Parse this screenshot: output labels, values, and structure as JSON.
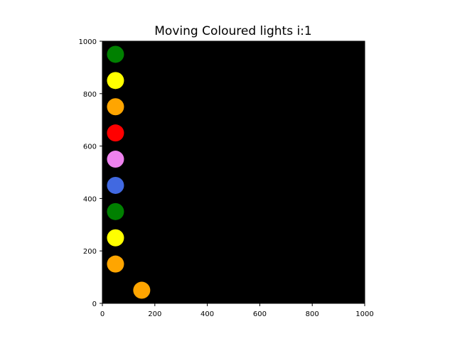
{
  "chart_data": {
    "type": "scatter",
    "title": "Moving Coloured lights i:1",
    "xlabel": "",
    "ylabel": "",
    "xlim": [
      0,
      1000
    ],
    "ylim": [
      0,
      1000
    ],
    "x_ticks": [
      0,
      200,
      400,
      600,
      800,
      1000
    ],
    "y_ticks": [
      0,
      200,
      400,
      600,
      800,
      1000
    ],
    "grid": false,
    "legend": "none",
    "plot_background": "#000000",
    "points": [
      {
        "x": 50,
        "y": 950,
        "color": "#008000"
      },
      {
        "x": 50,
        "y": 850,
        "color": "#ffff00"
      },
      {
        "x": 50,
        "y": 750,
        "color": "#ffa500"
      },
      {
        "x": 50,
        "y": 650,
        "color": "#ff0000"
      },
      {
        "x": 50,
        "y": 550,
        "color": "#ee82ee"
      },
      {
        "x": 50,
        "y": 450,
        "color": "#4169e1"
      },
      {
        "x": 50,
        "y": 350,
        "color": "#008000"
      },
      {
        "x": 50,
        "y": 250,
        "color": "#ffff00"
      },
      {
        "x": 50,
        "y": 150,
        "color": "#ffa500"
      },
      {
        "x": 150,
        "y": 50,
        "color": "#ffa500"
      }
    ]
  }
}
